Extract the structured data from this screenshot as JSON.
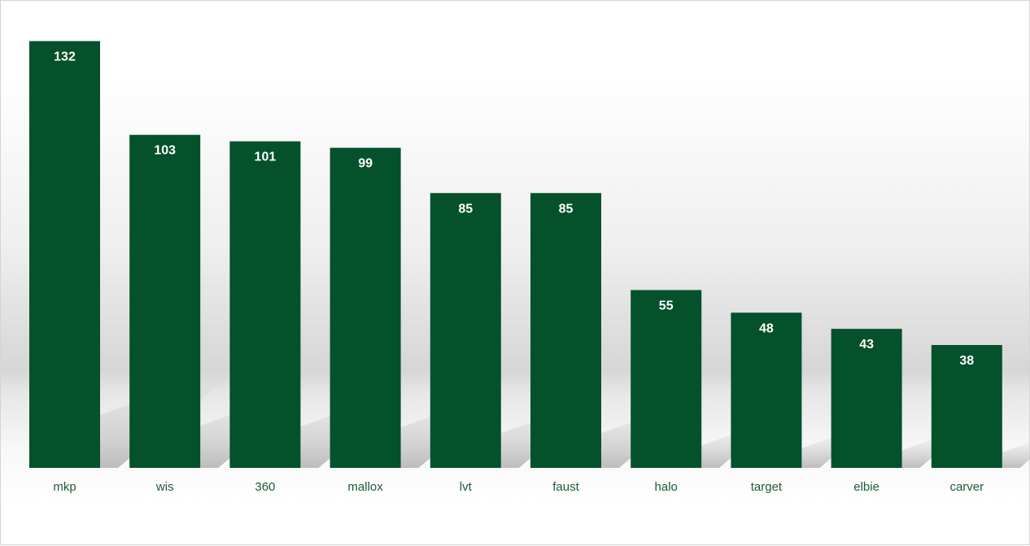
{
  "chart_data": {
    "type": "bar",
    "categories": [
      "mkp",
      "wis",
      "360",
      "mallox",
      "lvt",
      "faust",
      "halo",
      "target",
      "elbie",
      "carver"
    ],
    "values": [
      132,
      103,
      101,
      99,
      85,
      85,
      55,
      48,
      43,
      38
    ],
    "title": "",
    "xlabel": "",
    "ylabel": "",
    "ylim": [
      0,
      140
    ],
    "grid": false,
    "legend": "none",
    "data_labels": "inside-top",
    "colors": {
      "bar": "#04512c",
      "data_label": "#ffffff",
      "tick_label": "#1f5a3a",
      "shadow": "#bdbdbd"
    }
  }
}
